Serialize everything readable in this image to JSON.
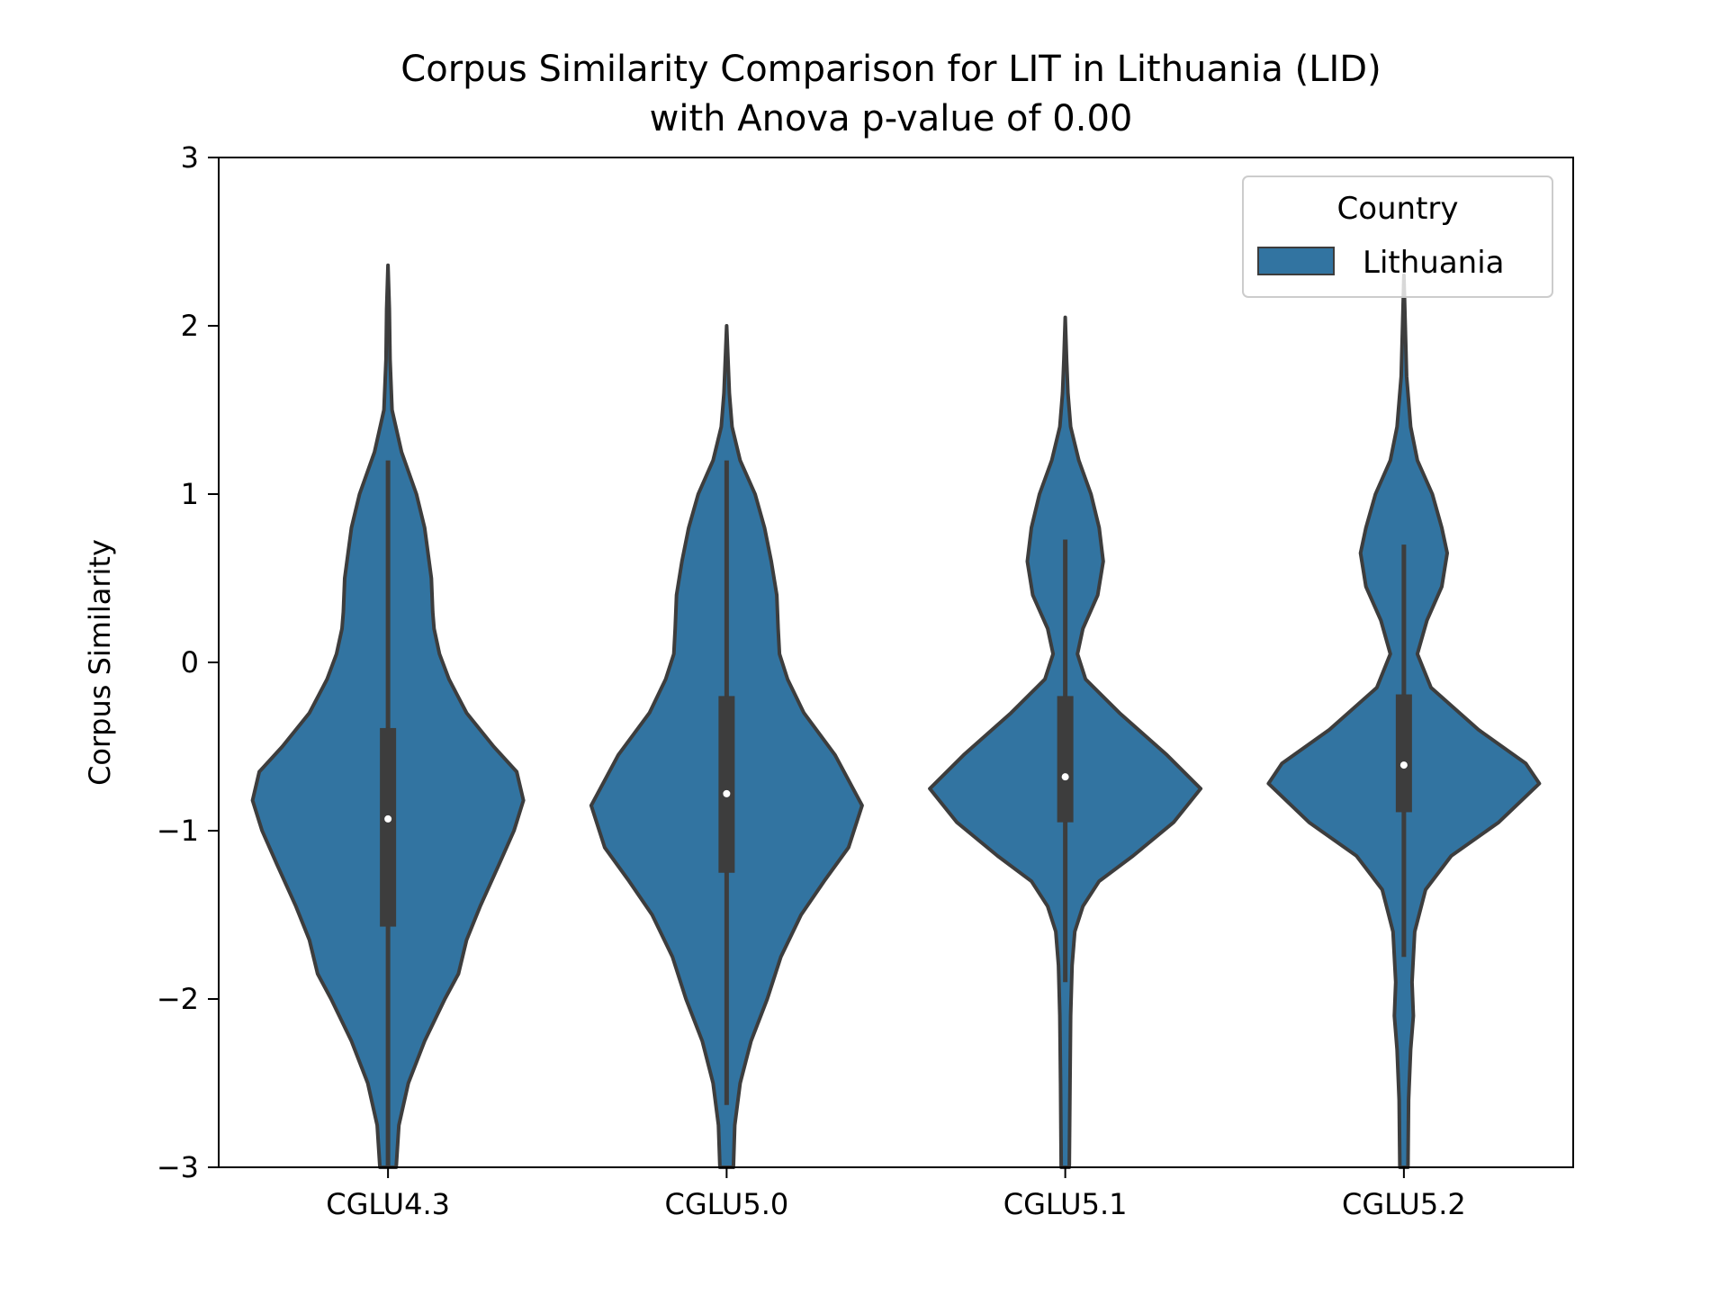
{
  "chart_data": {
    "type": "violin",
    "title_line1": "Corpus Similarity Comparison for LIT in Lithuania (LID)",
    "title_line2": "with Anova p-value of 0.00",
    "xlabel": "",
    "ylabel": "Corpus Similarity",
    "ylim": [
      -3,
      3
    ],
    "yticks": [
      3,
      2,
      1,
      0,
      -1,
      -2,
      -3
    ],
    "ytick_labels": [
      "3",
      "2",
      "1",
      "0",
      "−1",
      "−2",
      "−3"
    ],
    "categories": [
      "CGLU4.3",
      "CGLU5.0",
      "CGLU5.1",
      "CGLU5.2"
    ],
    "legend": {
      "title": "Country",
      "entries": [
        "Lithuania"
      ],
      "placement": "top-right"
    },
    "colors": {
      "fill": "#3274a1",
      "edge": "#3d3d3d",
      "median": "#ffffff"
    },
    "grid": false,
    "series": [
      {
        "category": "CGLU4.3",
        "median": -0.93,
        "q1": -1.57,
        "q3": -0.39,
        "whisker_low": -3.0,
        "whisker_high": 1.2,
        "data_min": -3.0,
        "data_max": 2.36,
        "density_profile": [
          [
            2.36,
            0.0
          ],
          [
            2.1,
            0.01
          ],
          [
            1.8,
            0.015
          ],
          [
            1.5,
            0.03
          ],
          [
            1.25,
            0.1
          ],
          [
            1.0,
            0.21
          ],
          [
            0.8,
            0.27
          ],
          [
            0.5,
            0.32
          ],
          [
            0.3,
            0.33
          ],
          [
            0.2,
            0.34
          ],
          [
            0.05,
            0.38
          ],
          [
            -0.1,
            0.45
          ],
          [
            -0.3,
            0.58
          ],
          [
            -0.5,
            0.78
          ],
          [
            -0.65,
            0.95
          ],
          [
            -0.82,
            1.0
          ],
          [
            -1.0,
            0.93
          ],
          [
            -1.2,
            0.82
          ],
          [
            -1.45,
            0.68
          ],
          [
            -1.65,
            0.58
          ],
          [
            -1.85,
            0.52
          ],
          [
            -2.0,
            0.42
          ],
          [
            -2.25,
            0.27
          ],
          [
            -2.5,
            0.15
          ],
          [
            -2.75,
            0.08
          ],
          [
            -3.0,
            0.06
          ]
        ]
      },
      {
        "category": "CGLU5.0",
        "median": -0.78,
        "q1": -1.25,
        "q3": -0.2,
        "whisker_low": -2.63,
        "whisker_high": 1.2,
        "data_min": -3.0,
        "data_max": 2.0,
        "density_profile": [
          [
            2.0,
            0.0
          ],
          [
            1.8,
            0.01
          ],
          [
            1.6,
            0.02
          ],
          [
            1.4,
            0.04
          ],
          [
            1.2,
            0.1
          ],
          [
            1.0,
            0.21
          ],
          [
            0.8,
            0.28
          ],
          [
            0.6,
            0.33
          ],
          [
            0.4,
            0.37
          ],
          [
            0.2,
            0.38
          ],
          [
            0.05,
            0.39
          ],
          [
            -0.1,
            0.45
          ],
          [
            -0.3,
            0.57
          ],
          [
            -0.55,
            0.8
          ],
          [
            -0.85,
            1.0
          ],
          [
            -1.1,
            0.9
          ],
          [
            -1.3,
            0.72
          ],
          [
            -1.5,
            0.55
          ],
          [
            -1.75,
            0.4
          ],
          [
            -2.0,
            0.3
          ],
          [
            -2.25,
            0.18
          ],
          [
            -2.5,
            0.1
          ],
          [
            -2.75,
            0.06
          ],
          [
            -3.0,
            0.05
          ]
        ]
      },
      {
        "category": "CGLU5.1",
        "median": -0.68,
        "q1": -0.95,
        "q3": -0.2,
        "whisker_low": -1.9,
        "whisker_high": 0.73,
        "data_min": -3.0,
        "data_max": 2.05,
        "density_profile": [
          [
            2.05,
            0.0
          ],
          [
            1.8,
            0.01
          ],
          [
            1.6,
            0.02
          ],
          [
            1.4,
            0.04
          ],
          [
            1.2,
            0.1
          ],
          [
            1.0,
            0.19
          ],
          [
            0.8,
            0.25
          ],
          [
            0.6,
            0.28
          ],
          [
            0.4,
            0.24
          ],
          [
            0.2,
            0.13
          ],
          [
            0.05,
            0.09
          ],
          [
            -0.1,
            0.15
          ],
          [
            -0.3,
            0.4
          ],
          [
            -0.55,
            0.75
          ],
          [
            -0.75,
            1.0
          ],
          [
            -0.95,
            0.8
          ],
          [
            -1.15,
            0.5
          ],
          [
            -1.3,
            0.25
          ],
          [
            -1.45,
            0.13
          ],
          [
            -1.6,
            0.07
          ],
          [
            -1.8,
            0.05
          ],
          [
            -2.1,
            0.04
          ],
          [
            -2.5,
            0.035
          ],
          [
            -3.0,
            0.03
          ]
        ]
      },
      {
        "category": "CGLU5.2",
        "median": -0.61,
        "q1": -0.89,
        "q3": -0.19,
        "whisker_low": -1.75,
        "whisker_high": 0.7,
        "data_min": -3.0,
        "data_max": 2.3,
        "density_profile": [
          [
            2.3,
            0.0
          ],
          [
            2.0,
            0.01
          ],
          [
            1.7,
            0.02
          ],
          [
            1.4,
            0.05
          ],
          [
            1.2,
            0.1
          ],
          [
            1.0,
            0.21
          ],
          [
            0.8,
            0.28
          ],
          [
            0.65,
            0.32
          ],
          [
            0.45,
            0.28
          ],
          [
            0.25,
            0.17
          ],
          [
            0.05,
            0.1
          ],
          [
            -0.15,
            0.2
          ],
          [
            -0.4,
            0.55
          ],
          [
            -0.6,
            0.9
          ],
          [
            -0.72,
            1.0
          ],
          [
            -0.95,
            0.7
          ],
          [
            -1.15,
            0.35
          ],
          [
            -1.35,
            0.16
          ],
          [
            -1.6,
            0.08
          ],
          [
            -1.9,
            0.06
          ],
          [
            -2.1,
            0.07
          ],
          [
            -2.3,
            0.05
          ],
          [
            -2.6,
            0.035
          ],
          [
            -3.0,
            0.03
          ]
        ]
      }
    ]
  }
}
